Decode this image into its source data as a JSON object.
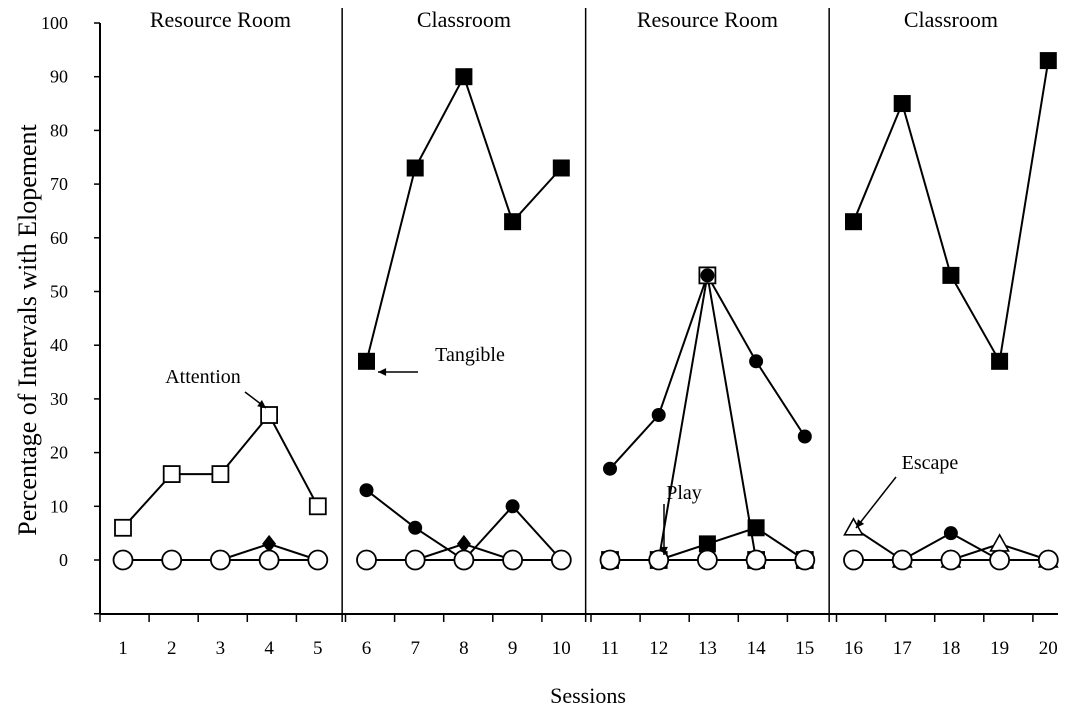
{
  "chart_data": {
    "type": "line",
    "ylabel": "Percentage of Intervals with Elopement",
    "xlabel": "Sessions",
    "ylim": [
      0,
      100
    ],
    "xlim": [
      1,
      20
    ],
    "yticks": [
      "0",
      "10",
      "20",
      "30",
      "40",
      "50",
      "60",
      "70",
      "80",
      "90",
      "100"
    ],
    "xticks": [
      "1",
      "2",
      "3",
      "4",
      "5",
      "6",
      "7",
      "8",
      "9",
      "10",
      "11",
      "12",
      "13",
      "14",
      "15",
      "16",
      "17",
      "18",
      "19",
      "20"
    ],
    "phases": [
      {
        "label": "Resource Room",
        "sessions": [
          1,
          5
        ]
      },
      {
        "label": "Classroom",
        "sessions": [
          6,
          10
        ]
      },
      {
        "label": "Resource Room",
        "sessions": [
          11,
          15
        ]
      },
      {
        "label": "Classroom",
        "sessions": [
          16,
          20
        ]
      }
    ],
    "series": [
      {
        "name": "Tangible",
        "marker": "filled-square",
        "points": [
          [
            [
              6,
              37
            ],
            [
              7,
              73
            ],
            [
              8,
              90
            ],
            [
              9,
              63
            ],
            [
              10,
              73
            ]
          ],
          [
            [
              12,
              0
            ],
            [
              13,
              3
            ],
            [
              14,
              6
            ],
            [
              15,
              0
            ]
          ],
          [
            [
              16,
              63
            ],
            [
              17,
              85
            ],
            [
              18,
              53
            ],
            [
              19,
              37
            ],
            [
              20,
              93
            ]
          ]
        ]
      },
      {
        "name": "Attention",
        "marker": "open-square",
        "points": [
          [
            [
              1,
              6
            ],
            [
              2,
              16
            ],
            [
              3,
              16
            ],
            [
              4,
              27
            ],
            [
              5,
              10
            ]
          ],
          [
            [
              11,
              0
            ],
            [
              12,
              0
            ],
            [
              13,
              53
            ],
            [
              14,
              0
            ],
            [
              15,
              0
            ]
          ]
        ]
      },
      {
        "name": "",
        "marker": "filled-circle",
        "points": [
          [
            [
              6,
              13
            ],
            [
              7,
              6
            ],
            [
              8,
              0
            ],
            [
              9,
              10
            ],
            [
              10,
              0
            ]
          ],
          [
            [
              11,
              17
            ],
            [
              12,
              27
            ],
            [
              13,
              53
            ],
            [
              14,
              37
            ],
            [
              15,
              23
            ]
          ],
          [
            [
              16,
              0
            ],
            [
              17,
              0
            ],
            [
              18,
              5
            ],
            [
              19,
              0
            ],
            [
              20,
              0
            ]
          ]
        ]
      },
      {
        "name": "",
        "marker": "filled-diamond",
        "points": [
          [
            [
              3,
              0
            ],
            [
              4,
              3
            ],
            [
              5,
              0
            ]
          ],
          [
            [
              7,
              0
            ],
            [
              8,
              3
            ],
            [
              9,
              0
            ]
          ]
        ]
      },
      {
        "name": "Escape",
        "marker": "open-triangle",
        "points": [
          [
            [
              16,
              6
            ],
            [
              17,
              0
            ],
            [
              18,
              0
            ],
            [
              19,
              3
            ],
            [
              20,
              0
            ]
          ]
        ]
      },
      {
        "name": "Play",
        "marker": "open-circle",
        "points": [
          [
            [
              1,
              0
            ],
            [
              2,
              0
            ],
            [
              3,
              0
            ],
            [
              4,
              0
            ],
            [
              5,
              0
            ]
          ],
          [
            [
              6,
              0
            ],
            [
              7,
              0
            ],
            [
              8,
              0
            ],
            [
              9,
              0
            ],
            [
              10,
              0
            ]
          ],
          [
            [
              11,
              0
            ],
            [
              12,
              0
            ],
            [
              13,
              0
            ],
            [
              14,
              0
            ],
            [
              15,
              0
            ]
          ],
          [
            [
              16,
              0
            ],
            [
              17,
              0
            ],
            [
              18,
              0
            ],
            [
              19,
              0
            ],
            [
              20,
              0
            ]
          ]
        ]
      }
    ],
    "annotations": [
      {
        "text": "Attention",
        "points_to": [
          4,
          27
        ]
      },
      {
        "text": "Tangible",
        "points_to": [
          6,
          37
        ]
      },
      {
        "text": "Play",
        "points_to": [
          12,
          0
        ]
      },
      {
        "text": "Escape",
        "points_to": [
          16,
          6
        ]
      }
    ]
  }
}
